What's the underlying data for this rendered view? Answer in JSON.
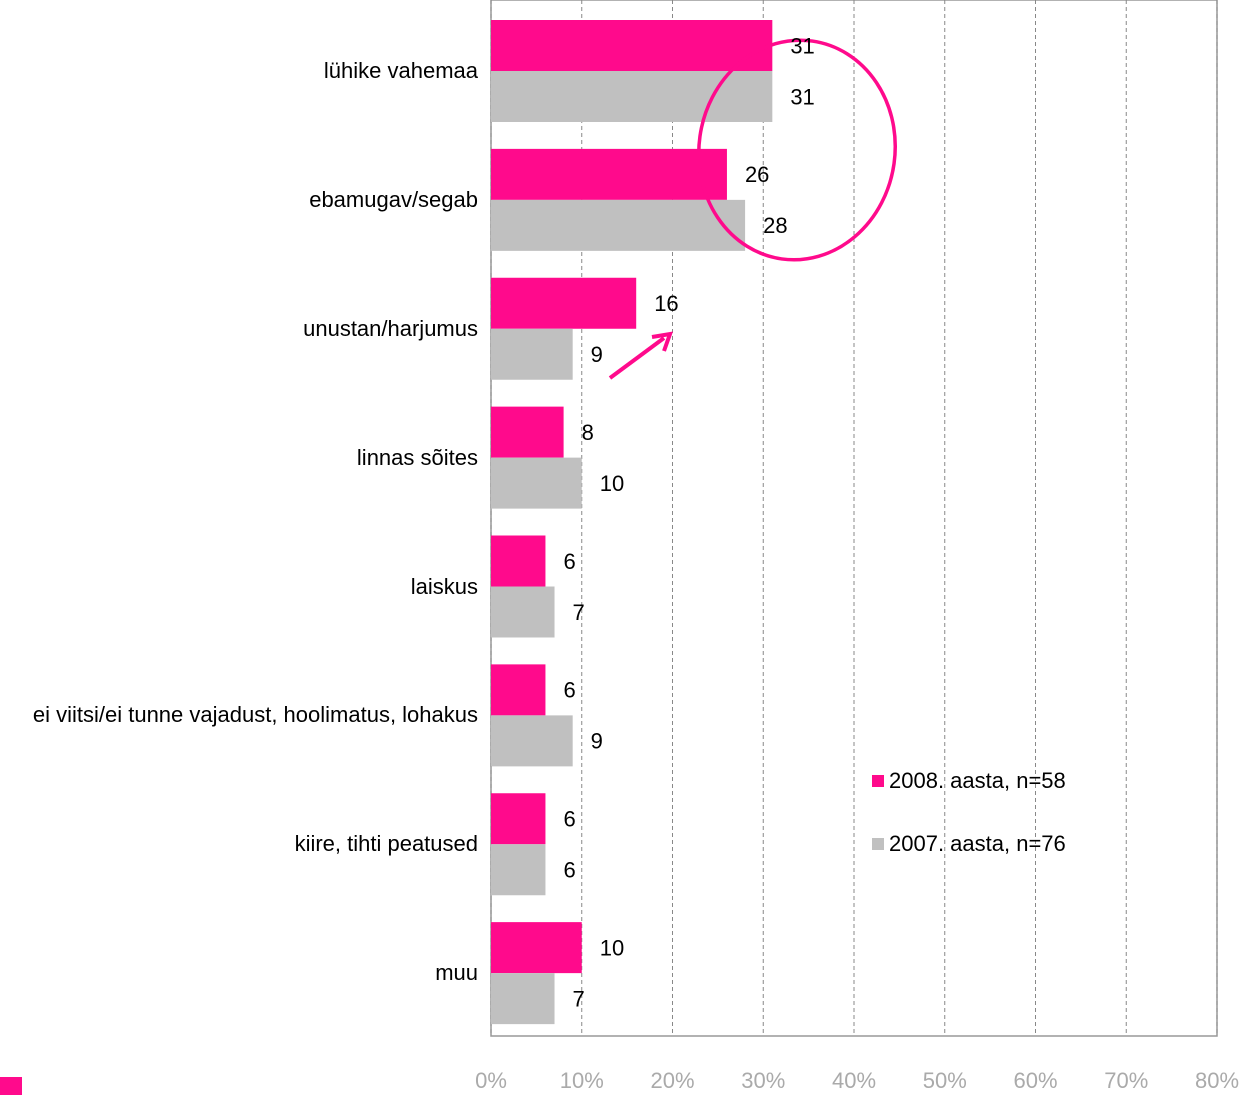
{
  "chart_data": {
    "type": "bar",
    "orientation": "horizontal",
    "categories": [
      "lühike vahemaa",
      "ebamugav/segab",
      "unustan/harjumus",
      "linnas sõites",
      "laiskus",
      "ei viitsi/ei tunne vajadust, hoolimatus, lohakus",
      "kiire, tihti peatused",
      "muu"
    ],
    "series": [
      {
        "name": "2008. aasta, n=58",
        "color": "#ff0a8c",
        "values": [
          31,
          26,
          16,
          8,
          6,
          6,
          6,
          10
        ]
      },
      {
        "name": "2007. aasta, n=76",
        "color": "#c0c0c0",
        "values": [
          31,
          28,
          9,
          10,
          7,
          9,
          6,
          7
        ]
      }
    ],
    "xlim": [
      0,
      80
    ],
    "xticks": [
      {
        "value": 0,
        "label": "0%"
      },
      {
        "value": 10,
        "label": "10%"
      },
      {
        "value": 20,
        "label": "20%"
      },
      {
        "value": 30,
        "label": "30%"
      },
      {
        "value": 40,
        "label": "40%"
      },
      {
        "value": 50,
        "label": "50%"
      },
      {
        "value": 60,
        "label": "60%"
      },
      {
        "value": 70,
        "label": "70%"
      },
      {
        "value": 80,
        "label": "80%"
      }
    ],
    "grid": true,
    "legend": "lower right"
  }
}
